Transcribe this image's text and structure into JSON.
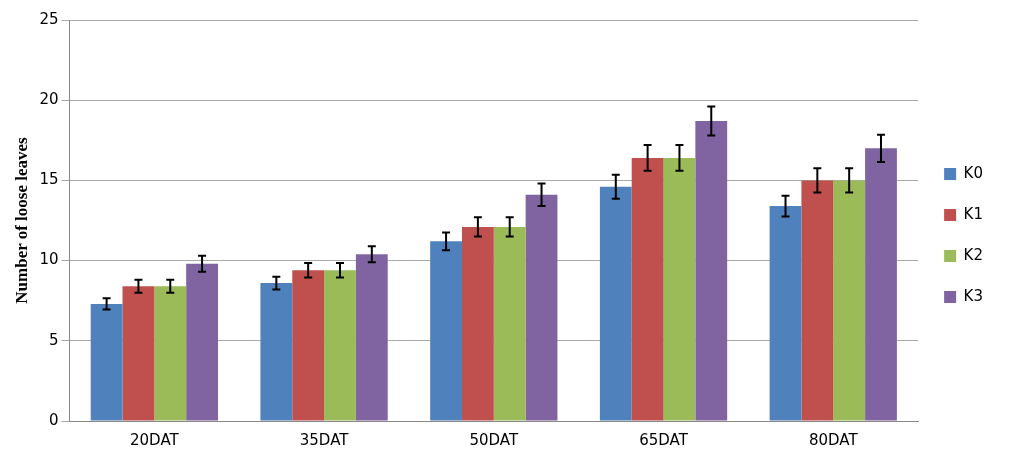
{
  "chart_data": {
    "type": "bar",
    "ylabel": "Number of loose leaves",
    "categories": [
      "20DAT",
      "35DAT",
      "50DAT",
      "65DAT",
      "80DAT"
    ],
    "series": [
      {
        "name": "K0",
        "color": "#4f81bd",
        "values": [
          7.3,
          8.6,
          11.2,
          14.6,
          13.4
        ],
        "errors": [
          0.35,
          0.4,
          0.55,
          0.75,
          0.65
        ]
      },
      {
        "name": "K1",
        "color": "#c0504d",
        "values": [
          8.4,
          9.4,
          12.1,
          16.4,
          15.0
        ],
        "errors": [
          0.4,
          0.45,
          0.6,
          0.8,
          0.75
        ]
      },
      {
        "name": "K2",
        "color": "#9bbb59",
        "values": [
          8.4,
          9.4,
          12.1,
          16.4,
          15.0
        ],
        "errors": [
          0.4,
          0.45,
          0.6,
          0.8,
          0.75
        ]
      },
      {
        "name": "K3",
        "color": "#8064a2",
        "values": [
          9.8,
          10.4,
          14.1,
          18.7,
          17.0
        ],
        "errors": [
          0.5,
          0.5,
          0.7,
          0.9,
          0.85
        ]
      }
    ],
    "ylim": [
      0,
      25
    ],
    "yticks": [
      0,
      5,
      10,
      15,
      20,
      25
    ],
    "grid": "y",
    "legend": "right"
  }
}
